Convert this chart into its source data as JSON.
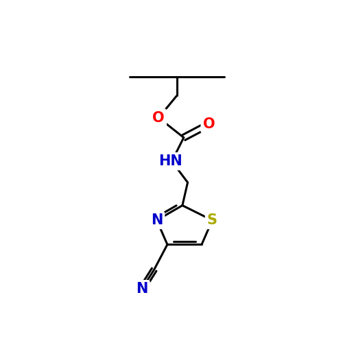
{
  "background_color": "#ffffff",
  "bond_color": "#000000",
  "bond_width": 2.2,
  "atom_colors": {
    "O": "#ff0000",
    "N": "#0000cc",
    "S": "#aaaa00",
    "default": "#000000"
  },
  "figsize": [
    5.0,
    5.0
  ],
  "dpi": 100,
  "xlim": [
    0,
    10
  ],
  "ylim": [
    0,
    10
  ],
  "font_size": 15
}
